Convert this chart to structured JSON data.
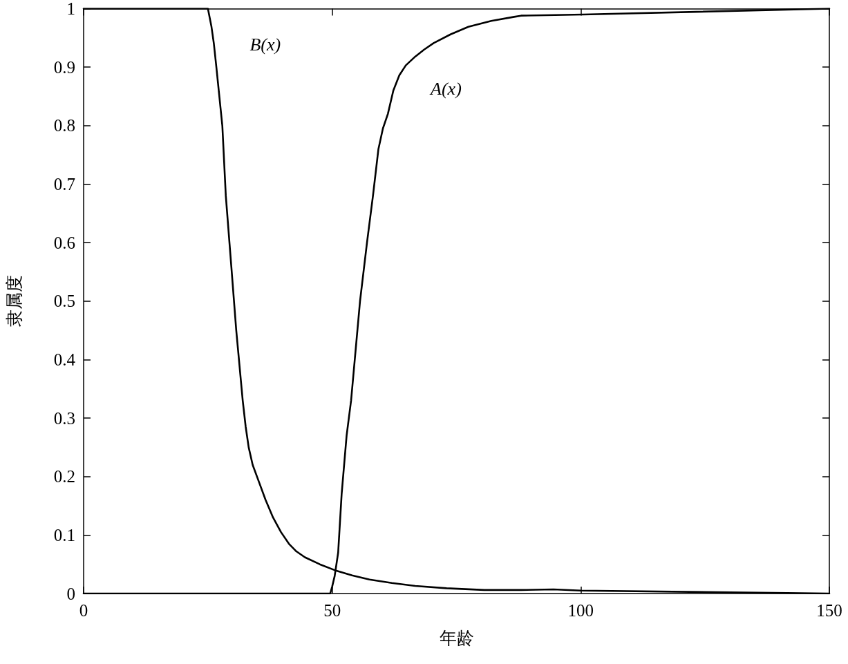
{
  "chart_data": {
    "type": "line",
    "xlabel": "年龄",
    "ylabel": "隶属度",
    "xlim": [
      0,
      150
    ],
    "xticks": [
      0,
      50,
      100,
      150
    ],
    "ylim": [
      0,
      1
    ],
    "yticks": [
      0,
      0.1,
      0.2,
      0.3,
      0.4,
      0.5,
      0.6,
      0.7,
      0.8,
      0.9,
      1
    ],
    "marker": "none",
    "line_style": "solid",
    "series": [
      {
        "name": "B(x)",
        "color": "#000000",
        "x": [
          0,
          25,
          25.7,
          26.2,
          26.7,
          27.9,
          28.6,
          29.7,
          30.7,
          32,
          32.6,
          33.2,
          34,
          35.3,
          36.6,
          38.1,
          39.7,
          41.3,
          42.8,
          44.5,
          47.5,
          50.5,
          54,
          57.5,
          62,
          66.7,
          73,
          80.6,
          88,
          94.5,
          100,
          150
        ],
        "values": [
          1,
          1,
          0.97,
          0.94,
          0.9,
          0.8,
          0.68,
          0.56,
          0.45,
          0.33,
          0.285,
          0.25,
          0.22,
          0.19,
          0.16,
          0.13,
          0.105,
          0.085,
          0.072,
          0.062,
          0.05,
          0.04,
          0.031,
          0.024,
          0.018,
          0.013,
          0.009,
          0.006,
          0.006,
          0.007,
          0.005,
          0
        ]
      },
      {
        "name": "A(x)",
        "color": "#000000",
        "x": [
          0,
          49.6,
          50,
          50.5,
          51.2,
          51.9,
          52.9,
          53.8,
          55.6,
          57,
          58.2,
          59.3,
          60.2,
          61.2,
          62.3,
          63.5,
          64.8,
          66.7,
          68.5,
          70.4,
          73.8,
          77.4,
          82,
          86.6,
          88,
          100.5,
          150
        ],
        "values": [
          0,
          0,
          0.012,
          0.03,
          0.07,
          0.17,
          0.27,
          0.33,
          0.5,
          0.6,
          0.68,
          0.76,
          0.795,
          0.82,
          0.86,
          0.886,
          0.903,
          0.918,
          0.93,
          0.941,
          0.956,
          0.969,
          0.979,
          0.986,
          0.988,
          0.99,
          1
        ]
      }
    ]
  }
}
